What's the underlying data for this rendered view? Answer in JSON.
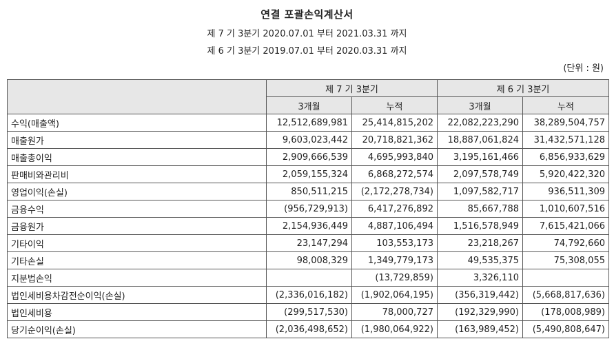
{
  "header": {
    "title": "연결 포괄손익계산서",
    "period_current": "제 7 기 3분기 2020.07.01 부터 2021.03.31 까지",
    "period_prior": "제 6 기 3분기 2019.07.01 부터 2020.03.31 까지",
    "unit": "(단위 : 원)"
  },
  "table": {
    "group_headers": [
      "제 7 기 3분기",
      "제 6 기 3분기"
    ],
    "sub_headers": [
      "3개월",
      "누적",
      "3개월",
      "누적"
    ],
    "rows": [
      {
        "label": "수익(매출액)",
        "values": [
          "12,512,689,981",
          "25,414,815,202",
          "22,082,223,290",
          "38,289,504,757"
        ]
      },
      {
        "label": "매출원가",
        "values": [
          "9,603,023,442",
          "20,718,821,362",
          "18,887,061,824",
          "31,432,571,128"
        ]
      },
      {
        "label": "매출총이익",
        "values": [
          "2,909,666,539",
          "4,695,993,840",
          "3,195,161,466",
          "6,856,933,629"
        ]
      },
      {
        "label": "판매비와관리비",
        "values": [
          "2,059,155,324",
          "6,868,272,574",
          "2,097,578,749",
          "5,920,422,320"
        ]
      },
      {
        "label": "영업이익(손실)",
        "values": [
          "850,511,215",
          "(2,172,278,734)",
          "1,097,582,717",
          "936,511,309"
        ]
      },
      {
        "label": "금융수익",
        "values": [
          "(956,729,913)",
          "6,417,276,892",
          "85,667,788",
          "1,010,607,516"
        ]
      },
      {
        "label": "금융원가",
        "values": [
          "2,154,936,449",
          "4,887,106,494",
          "1,516,578,949",
          "7,615,421,066"
        ]
      },
      {
        "label": "기타이익",
        "values": [
          "23,147,294",
          "103,553,173",
          "23,218,267",
          "74,792,660"
        ]
      },
      {
        "label": "기타손실",
        "values": [
          "98,008,329",
          "1,349,779,173",
          "49,535,375",
          "75,308,055"
        ]
      },
      {
        "label": "지분법손익",
        "values": [
          "",
          "(13,729,859)",
          "3,326,110",
          ""
        ]
      },
      {
        "label": "법인세비용차감전순이익(손실)",
        "values": [
          "(2,336,016,182)",
          "(1,902,064,195)",
          "(356,319,442)",
          "(5,668,817,636)"
        ]
      },
      {
        "label": "법인세비용",
        "values": [
          "(299,517,530)",
          "78,000,727",
          "(192,329,990)",
          "(178,008,989)"
        ]
      },
      {
        "label": "당기순이익(손실)",
        "values": [
          "(2,036,498,652)",
          "(1,980,064,922)",
          "(163,989,452)",
          "(5,490,808,647)"
        ]
      }
    ]
  }
}
